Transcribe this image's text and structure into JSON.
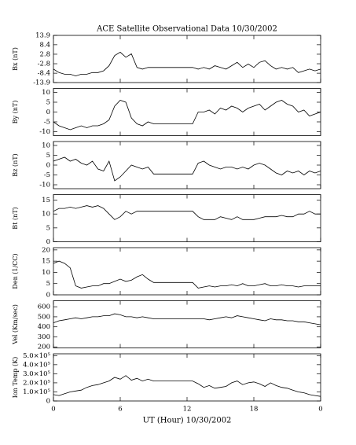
{
  "chart_data": [
    {
      "type": "line",
      "title": "ACE Satellite Observational Data   10/30/2002",
      "ylabel": "Bx (nT)",
      "color": "#000000",
      "x": [
        0,
        0.5,
        1,
        1.5,
        2,
        2.5,
        3,
        3.5,
        4,
        4.5,
        5,
        5.5,
        6,
        6.5,
        7,
        7.5,
        8,
        8.5,
        9,
        9.5,
        10,
        10.5,
        11,
        11.5,
        12,
        12.5,
        13,
        13.5,
        14,
        14.5,
        15,
        15.5,
        16,
        16.5,
        17,
        17.5,
        18,
        18.5,
        19,
        19.5,
        20,
        20.5,
        21,
        21.5,
        22,
        22.5,
        23,
        23.5,
        24
      ],
      "values": [
        -6,
        -8,
        -9,
        -9,
        -10,
        -9,
        -9,
        -8,
        -8,
        -7,
        -4,
        2,
        4,
        1,
        3,
        -5,
        -6,
        -5,
        -5,
        -5,
        -5,
        -5,
        -5,
        -5,
        -5,
        -5,
        -6,
        -5,
        -6,
        -4,
        -5,
        -6,
        -4,
        -2,
        -5,
        -3,
        -5,
        -2,
        -1,
        -4,
        -6,
        -5,
        -6,
        -5,
        -8,
        -7,
        -6,
        -7,
        -6
      ],
      "ylim": [
        -13.9,
        13.9
      ],
      "yticks": [
        -13.9,
        -8.4,
        -2.8,
        2.8,
        8.4,
        13.9
      ]
    },
    {
      "type": "line",
      "ylabel": "By (nT)",
      "color": "#000000",
      "x": [
        0,
        0.5,
        1,
        1.5,
        2,
        2.5,
        3,
        3.5,
        4,
        4.5,
        5,
        5.5,
        6,
        6.5,
        7,
        7.5,
        8,
        8.5,
        9,
        9.5,
        10,
        10.5,
        11,
        11.5,
        12,
        12.5,
        13,
        13.5,
        14,
        14.5,
        15,
        15.5,
        16,
        16.5,
        17,
        17.5,
        18,
        18.5,
        19,
        19.5,
        20,
        20.5,
        21,
        21.5,
        22,
        22.5,
        23,
        23.5,
        24
      ],
      "values": [
        -5,
        -7,
        -8,
        -9,
        -8,
        -7,
        -8,
        -7,
        -7,
        -6,
        -4,
        3,
        6,
        5,
        -3,
        -6,
        -7,
        -5,
        -6,
        -6,
        -6,
        -6,
        -6,
        -6,
        -6,
        -6,
        0,
        0,
        1,
        -1,
        2,
        1,
        3,
        2,
        0,
        2,
        3,
        4,
        1,
        3,
        5,
        6,
        4,
        3,
        0,
        1,
        -2,
        -1,
        0
      ],
      "ylim": [
        -12,
        12
      ],
      "yticks": [
        -10,
        -5,
        0,
        5,
        10
      ]
    },
    {
      "type": "line",
      "ylabel": "Bz (nT)",
      "color": "#000000",
      "x": [
        0,
        0.5,
        1,
        1.5,
        2,
        2.5,
        3,
        3.5,
        4,
        4.5,
        5,
        5.5,
        6,
        6.5,
        7,
        7.5,
        8,
        8.5,
        9,
        9.5,
        10,
        10.5,
        11,
        11.5,
        12,
        12.5,
        13,
        13.5,
        14,
        14.5,
        15,
        15.5,
        16,
        16.5,
        17,
        17.5,
        18,
        18.5,
        19,
        19.5,
        20,
        20.5,
        21,
        21.5,
        22,
        22.5,
        23,
        23.5,
        24
      ],
      "values": [
        2,
        3,
        4,
        2,
        3,
        1,
        0,
        2,
        -2,
        -3,
        2,
        -8,
        -6,
        -3,
        0,
        -1,
        -2,
        -1,
        -4.5,
        -4.5,
        -4.5,
        -4.5,
        -4.5,
        -4.5,
        -4.5,
        -4.5,
        1,
        2,
        0,
        -1,
        -2,
        -1,
        -1,
        -2,
        -1,
        -2,
        0,
        1,
        0,
        -2,
        -4,
        -5,
        -3,
        -4,
        -3,
        -5,
        -3,
        -4,
        -3
      ],
      "ylim": [
        -12,
        12
      ],
      "yticks": [
        -10,
        -5,
        0,
        5,
        10
      ]
    },
    {
      "type": "line",
      "ylabel": "Bt (nT)",
      "color": "#000000",
      "x": [
        0,
        0.5,
        1,
        1.5,
        2,
        2.5,
        3,
        3.5,
        4,
        4.5,
        5,
        5.5,
        6,
        6.5,
        7,
        7.5,
        8,
        8.5,
        9,
        9.5,
        10,
        10.5,
        11,
        11.5,
        12,
        12.5,
        13,
        13.5,
        14,
        14.5,
        15,
        15.5,
        16,
        16.5,
        17,
        17.5,
        18,
        18.5,
        19,
        19.5,
        20,
        20.5,
        21,
        21.5,
        22,
        22.5,
        23,
        23.5,
        24
      ],
      "values": [
        11,
        12,
        12,
        12.5,
        12,
        12.5,
        13,
        12.5,
        13,
        12,
        10,
        8,
        9,
        11,
        10,
        11,
        11,
        11,
        11,
        11,
        11,
        11,
        11,
        11,
        11,
        11,
        9,
        8,
        8,
        8,
        9,
        8.5,
        8,
        9,
        8,
        8,
        8,
        8.5,
        9,
        9,
        9,
        9.5,
        9,
        9,
        10,
        10,
        11,
        10,
        10
      ],
      "ylim": [
        0,
        17
      ],
      "yticks": [
        0,
        5,
        10,
        15
      ]
    },
    {
      "type": "line",
      "ylabel": "Den (1/CC)",
      "color": "#000000",
      "x": [
        0,
        0.5,
        1,
        1.5,
        2,
        2.5,
        3,
        3.5,
        4,
        4.5,
        5,
        5.5,
        6,
        6.5,
        7,
        7.5,
        8,
        8.5,
        9,
        9.5,
        10,
        10.5,
        11,
        11.5,
        12,
        12.5,
        13,
        13.5,
        14,
        14.5,
        15,
        15.5,
        16,
        16.5,
        17,
        17.5,
        18,
        18.5,
        19,
        19.5,
        20,
        20.5,
        21,
        21.5,
        22,
        22.5,
        23,
        23.5,
        24
      ],
      "values": [
        14,
        15,
        14,
        12,
        4,
        3,
        3.5,
        4,
        4,
        5,
        5,
        6,
        7,
        6,
        6.5,
        8,
        9,
        7,
        5.5,
        5.5,
        5.5,
        5.5,
        5.5,
        5.5,
        5.5,
        5.5,
        3,
        3.5,
        4,
        3.5,
        4,
        4,
        4.5,
        4,
        5,
        4,
        4,
        4.5,
        5,
        4,
        4,
        4.5,
        4,
        4,
        3.5,
        4,
        4,
        4,
        4
      ],
      "ylim": [
        0,
        21
      ],
      "yticks": [
        0,
        5,
        10,
        15,
        20
      ]
    },
    {
      "type": "line",
      "ylabel": "Vel (Km/sec)",
      "color": "#000000",
      "x": [
        0,
        0.5,
        1,
        1.5,
        2,
        2.5,
        3,
        3.5,
        4,
        4.5,
        5,
        5.5,
        6,
        6.5,
        7,
        7.5,
        8,
        8.5,
        9,
        9.5,
        10,
        10.5,
        11,
        11.5,
        12,
        12.5,
        13,
        13.5,
        14,
        14.5,
        15,
        15.5,
        16,
        16.5,
        17,
        17.5,
        18,
        18.5,
        19,
        19.5,
        20,
        20.5,
        21,
        21.5,
        22,
        22.5,
        23,
        23.5,
        24
      ],
      "values": [
        440,
        460,
        470,
        480,
        490,
        480,
        490,
        500,
        500,
        510,
        510,
        530,
        520,
        500,
        500,
        490,
        500,
        490,
        480,
        480,
        480,
        480,
        480,
        480,
        480,
        480,
        480,
        480,
        470,
        480,
        490,
        500,
        490,
        510,
        500,
        490,
        480,
        470,
        460,
        480,
        470,
        470,
        460,
        460,
        450,
        450,
        440,
        430,
        420
      ],
      "ylim": [
        190,
        660
      ],
      "yticks": [
        200,
        300,
        400,
        500,
        600
      ]
    },
    {
      "type": "line",
      "ylabel": "Ion Temp (K)",
      "xlabel": "UT (Hour)  10/30/2002",
      "color": "#000000",
      "x": [
        0,
        0.5,
        1,
        1.5,
        2,
        2.5,
        3,
        3.5,
        4,
        4.5,
        5,
        5.5,
        6,
        6.5,
        7,
        7.5,
        8,
        8.5,
        9,
        9.5,
        10,
        10.5,
        11,
        11.5,
        12,
        12.5,
        13,
        13.5,
        14,
        14.5,
        15,
        15.5,
        16,
        16.5,
        17,
        17.5,
        18,
        18.5,
        19,
        19.5,
        20,
        20.5,
        21,
        21.5,
        22,
        22.5,
        23,
        23.5,
        24
      ],
      "values": [
        70000,
        60000,
        80000,
        100000,
        110000,
        120000,
        150000,
        170000,
        180000,
        200000,
        220000,
        260000,
        240000,
        280000,
        230000,
        250000,
        220000,
        240000,
        220000,
        220000,
        220000,
        220000,
        220000,
        220000,
        220000,
        220000,
        190000,
        150000,
        170000,
        140000,
        150000,
        160000,
        200000,
        220000,
        180000,
        200000,
        210000,
        190000,
        160000,
        200000,
        170000,
        150000,
        140000,
        120000,
        100000,
        90000,
        70000,
        60000,
        50000
      ],
      "ylim": [
        0,
        520000
      ],
      "yticks": [
        0,
        {
          "value": 100000,
          "label": "1.0×10⁵"
        },
        {
          "value": 200000,
          "label": "2.0×10⁵"
        },
        {
          "value": 300000,
          "label": "3.0×10⁵"
        },
        {
          "value": 400000,
          "label": "4.0×10⁵"
        },
        {
          "value": 500000,
          "label": "5.0×10⁵"
        }
      ],
      "xlim": [
        0,
        24
      ],
      "xticks": [
        0,
        6,
        12,
        18,
        {
          "value": 24,
          "label": "0"
        }
      ]
    }
  ]
}
